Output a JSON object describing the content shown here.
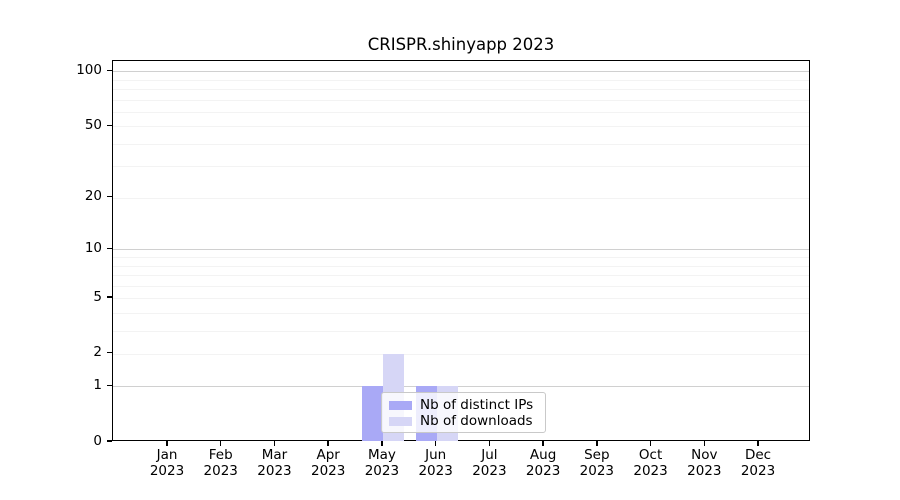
{
  "chart_data": {
    "type": "bar",
    "title": "CRISPR.shinyapp 2023",
    "categories": [
      "Jan 2023",
      "Feb 2023",
      "Mar 2023",
      "Apr 2023",
      "May 2023",
      "Jun 2023",
      "Jul 2023",
      "Aug 2023",
      "Sep 2023",
      "Oct 2023",
      "Nov 2023",
      "Dec 2023"
    ],
    "series": [
      {
        "name": "Nb of distinct IPs",
        "color": "#a9a9f6",
        "values": [
          0,
          0,
          0,
          0,
          1,
          1,
          0,
          0,
          0,
          0,
          0,
          0
        ]
      },
      {
        "name": "Nb of downloads",
        "color": "#d6d6f6",
        "values": [
          0,
          0,
          0,
          0,
          2,
          1,
          0,
          0,
          0,
          0,
          0,
          0
        ]
      }
    ],
    "xlabel": "",
    "ylabel": "",
    "yscale": "log1p",
    "ylim": [
      0,
      114
    ],
    "ytick_values": [
      0,
      1,
      2,
      5,
      10,
      20,
      50,
      100
    ],
    "ytick_labels": [
      "0",
      "1",
      "2",
      "5",
      "10",
      "20",
      "50",
      "100"
    ],
    "gridlines_major": [
      1,
      10,
      100
    ],
    "gridlines_minor": [
      2,
      3,
      4,
      5,
      6,
      7,
      8,
      9,
      20,
      30,
      40,
      50,
      60,
      70,
      80,
      90
    ],
    "grid": "on",
    "legend_position": "lower-center-inside",
    "colors": {
      "grid_major": "#d0d0d0",
      "grid_minor": "#f3f3f3",
      "axis": "#000000",
      "text": "#000000",
      "background": "#ffffff",
      "legend_border": "#c9c9c9"
    }
  }
}
